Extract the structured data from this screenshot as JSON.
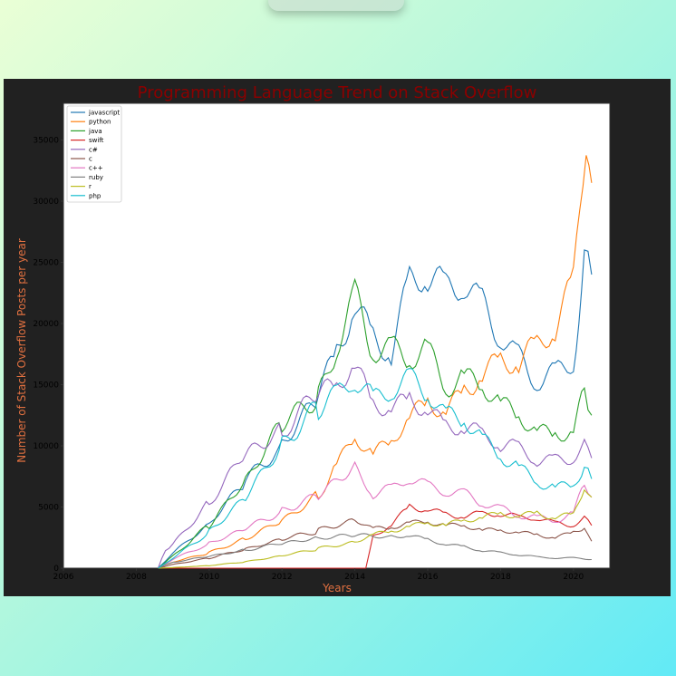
{
  "chart_data": {
    "type": "line",
    "title": "Programming Language Trend on Stack Overflow",
    "xlabel": "Years",
    "ylabel": "Number of Stack Overflow Posts per year",
    "xlim": [
      2006,
      2021
    ],
    "ylim": [
      0,
      38000
    ],
    "x_ticks": [
      2006,
      2008,
      2010,
      2012,
      2014,
      2016,
      2018,
      2020
    ],
    "y_ticks": [
      0,
      5000,
      10000,
      15000,
      20000,
      25000,
      30000,
      35000
    ],
    "grid": false,
    "legend_position": "top-left",
    "colors": {
      "figure_background": "#212121",
      "plot_background": "#ffffff",
      "title": "#8b0000",
      "axis_label": "#e07040"
    },
    "series": [
      {
        "name": "javascript",
        "color": "#1f77b4",
        "points": [
          [
            2008.6,
            0
          ],
          [
            2009,
            1200
          ],
          [
            2010,
            3500
          ],
          [
            2011,
            7000
          ],
          [
            2012,
            10000
          ],
          [
            2013,
            14500
          ],
          [
            2013.5,
            18000
          ],
          [
            2014,
            22500
          ],
          [
            2014.5,
            19500
          ],
          [
            2015,
            18000
          ],
          [
            2015.5,
            23500
          ],
          [
            2016,
            23500
          ],
          [
            2016.5,
            22000
          ],
          [
            2017,
            22500
          ],
          [
            2017.5,
            21000
          ],
          [
            2018,
            19000
          ],
          [
            2018.5,
            17500
          ],
          [
            2019,
            16000
          ],
          [
            2019.5,
            16500
          ],
          [
            2020,
            17500
          ],
          [
            2020.3,
            25000
          ],
          [
            2020.5,
            24000
          ]
        ]
      },
      {
        "name": "python",
        "color": "#ff7f0e",
        "points": [
          [
            2008.6,
            0
          ],
          [
            2009,
            500
          ],
          [
            2010,
            1300
          ],
          [
            2011,
            2500
          ],
          [
            2012,
            4000
          ],
          [
            2013,
            6000
          ],
          [
            2013.5,
            8500
          ],
          [
            2014,
            10500
          ],
          [
            2014.5,
            9000
          ],
          [
            2015,
            10000
          ],
          [
            2015.5,
            12000
          ],
          [
            2016,
            13500
          ],
          [
            2016.5,
            13000
          ],
          [
            2017,
            15000
          ],
          [
            2017.5,
            16500
          ],
          [
            2018,
            17500
          ],
          [
            2018.5,
            17000
          ],
          [
            2019,
            18000
          ],
          [
            2019.5,
            19000
          ],
          [
            2020,
            22500
          ],
          [
            2020.35,
            34500
          ],
          [
            2020.5,
            31500
          ]
        ]
      },
      {
        "name": "java",
        "color": "#2ca02c",
        "points": [
          [
            2008.6,
            0
          ],
          [
            2009,
            1000
          ],
          [
            2010,
            3500
          ],
          [
            2011,
            7000
          ],
          [
            2012,
            11500
          ],
          [
            2013,
            13500
          ],
          [
            2013.5,
            17500
          ],
          [
            2014,
            22000
          ],
          [
            2014.5,
            18000
          ],
          [
            2015,
            18500
          ],
          [
            2015.5,
            18000
          ],
          [
            2016,
            18500
          ],
          [
            2016.5,
            15000
          ],
          [
            2017,
            15500
          ],
          [
            2017.5,
            14500
          ],
          [
            2018,
            13000
          ],
          [
            2018.5,
            12000
          ],
          [
            2019,
            11000
          ],
          [
            2019.5,
            11000
          ],
          [
            2020,
            11500
          ],
          [
            2020.3,
            15000
          ],
          [
            2020.5,
            12500
          ]
        ]
      },
      {
        "name": "swift",
        "color": "#d62728",
        "points": [
          [
            2008.6,
            0
          ],
          [
            2014.3,
            0
          ],
          [
            2014.5,
            2500
          ],
          [
            2015,
            3500
          ],
          [
            2015.5,
            5000
          ],
          [
            2016,
            5000
          ],
          [
            2016.5,
            4500
          ],
          [
            2017,
            4500
          ],
          [
            2017.5,
            4500
          ],
          [
            2018,
            4500
          ],
          [
            2018.5,
            4000
          ],
          [
            2019,
            4000
          ],
          [
            2019.5,
            3500
          ],
          [
            2020,
            3500
          ],
          [
            2020.3,
            4000
          ],
          [
            2020.5,
            3500
          ]
        ]
      },
      {
        "name": "c#",
        "color": "#9467bd",
        "points": [
          [
            2008.6,
            0
          ],
          [
            2008.8,
            1500
          ],
          [
            2009,
            2000
          ],
          [
            2010,
            5500
          ],
          [
            2011,
            9500
          ],
          [
            2012,
            11000
          ],
          [
            2013,
            14000
          ],
          [
            2013.5,
            14500
          ],
          [
            2014,
            16000
          ],
          [
            2014.5,
            13000
          ],
          [
            2015,
            13000
          ],
          [
            2015.5,
            14000
          ],
          [
            2016,
            13500
          ],
          [
            2016.5,
            12000
          ],
          [
            2017,
            12000
          ],
          [
            2017.5,
            11000
          ],
          [
            2018,
            10000
          ],
          [
            2018.5,
            9500
          ],
          [
            2019,
            8500
          ],
          [
            2019.5,
            8500
          ],
          [
            2020,
            9000
          ],
          [
            2020.3,
            10000
          ],
          [
            2020.5,
            9000
          ]
        ]
      },
      {
        "name": "c",
        "color": "#8c564b",
        "points": [
          [
            2008.6,
            0
          ],
          [
            2009,
            300
          ],
          [
            2010,
            800
          ],
          [
            2011,
            1500
          ],
          [
            2012,
            2300
          ],
          [
            2013,
            3000
          ],
          [
            2014,
            4000
          ],
          [
            2014.5,
            3200
          ],
          [
            2015,
            3500
          ],
          [
            2015.5,
            3800
          ],
          [
            2016,
            4000
          ],
          [
            2016.5,
            3500
          ],
          [
            2017,
            3500
          ],
          [
            2017.5,
            3000
          ],
          [
            2018,
            3000
          ],
          [
            2018.5,
            2800
          ],
          [
            2019,
            2700
          ],
          [
            2019.5,
            2500
          ],
          [
            2020,
            3000
          ],
          [
            2020.3,
            3500
          ],
          [
            2020.5,
            2200
          ]
        ]
      },
      {
        "name": "c++",
        "color": "#e377c2",
        "points": [
          [
            2008.6,
            0
          ],
          [
            2009,
            700
          ],
          [
            2010,
            2000
          ],
          [
            2011,
            3300
          ],
          [
            2012,
            4800
          ],
          [
            2013,
            6200
          ],
          [
            2014,
            8500
          ],
          [
            2014.5,
            6200
          ],
          [
            2015,
            6500
          ],
          [
            2015.5,
            7200
          ],
          [
            2016,
            6500
          ],
          [
            2016.5,
            6000
          ],
          [
            2017,
            6000
          ],
          [
            2017.5,
            5300
          ],
          [
            2018,
            5000
          ],
          [
            2018.5,
            4500
          ],
          [
            2019,
            4300
          ],
          [
            2019.5,
            4000
          ],
          [
            2020,
            4500
          ],
          [
            2020.3,
            6800
          ],
          [
            2020.5,
            5800
          ]
        ]
      },
      {
        "name": "ruby",
        "color": "#7f7f7f",
        "points": [
          [
            2008.6,
            0
          ],
          [
            2009,
            500
          ],
          [
            2010,
            1000
          ],
          [
            2011,
            1500
          ],
          [
            2012,
            2000
          ],
          [
            2013,
            2400
          ],
          [
            2014,
            2600
          ],
          [
            2015,
            2500
          ],
          [
            2015.5,
            2600
          ],
          [
            2016,
            2300
          ],
          [
            2016.5,
            2000
          ],
          [
            2017,
            1800
          ],
          [
            2017.5,
            1500
          ],
          [
            2018,
            1300
          ],
          [
            2018.5,
            1100
          ],
          [
            2019,
            900
          ],
          [
            2019.5,
            800
          ],
          [
            2020,
            800
          ],
          [
            2020.5,
            700
          ]
        ]
      },
      {
        "name": "r",
        "color": "#bcbd22",
        "points": [
          [
            2008.6,
            0
          ],
          [
            2009,
            50
          ],
          [
            2010,
            200
          ],
          [
            2011,
            500
          ],
          [
            2012,
            1000
          ],
          [
            2013,
            1600
          ],
          [
            2014,
            2200
          ],
          [
            2014.5,
            2800
          ],
          [
            2015,
            3200
          ],
          [
            2015.5,
            3500
          ],
          [
            2016,
            3800
          ],
          [
            2016.5,
            3500
          ],
          [
            2017,
            3800
          ],
          [
            2017.5,
            4000
          ],
          [
            2018,
            4300
          ],
          [
            2018.5,
            4200
          ],
          [
            2019,
            4500
          ],
          [
            2019.5,
            4300
          ],
          [
            2020,
            4500
          ],
          [
            2020.3,
            7000
          ],
          [
            2020.5,
            5800
          ]
        ]
      },
      {
        "name": "php",
        "color": "#17becf",
        "points": [
          [
            2008.6,
            0
          ],
          [
            2009,
            800
          ],
          [
            2010,
            3000
          ],
          [
            2011,
            6000
          ],
          [
            2012,
            10500
          ],
          [
            2013,
            13500
          ],
          [
            2013.5,
            14500
          ],
          [
            2014,
            15500
          ],
          [
            2014.5,
            13500
          ],
          [
            2015,
            14000
          ],
          [
            2015.5,
            15000
          ],
          [
            2016,
            14000
          ],
          [
            2016.5,
            12500
          ],
          [
            2017,
            12500
          ],
          [
            2017.5,
            11000
          ],
          [
            2018,
            9500
          ],
          [
            2018.5,
            8500
          ],
          [
            2019,
            7000
          ],
          [
            2019.5,
            6500
          ],
          [
            2020,
            6500
          ],
          [
            2020.3,
            8000
          ],
          [
            2020.5,
            7300
          ]
        ]
      }
    ]
  }
}
